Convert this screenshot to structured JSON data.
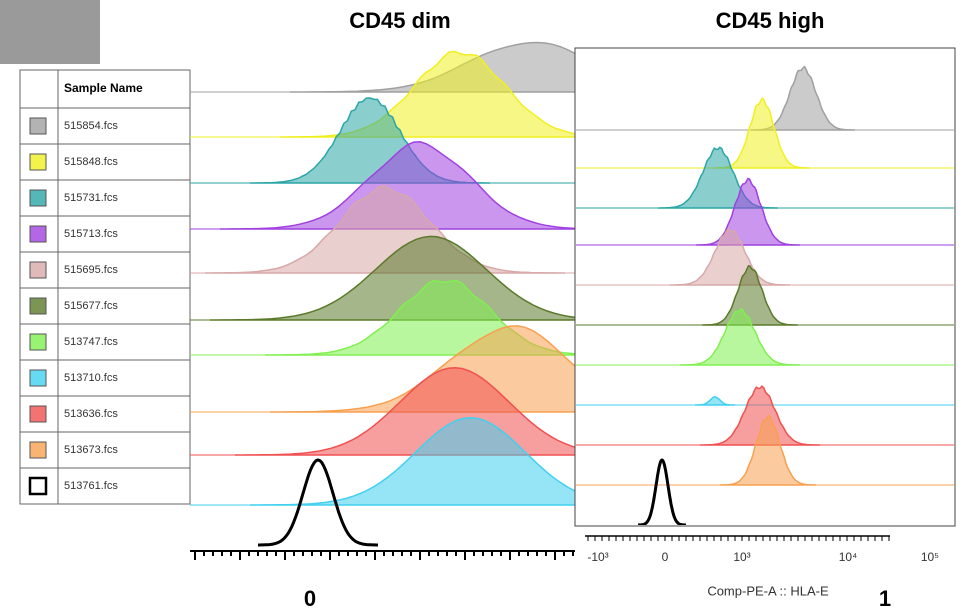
{
  "header": {
    "left_title": "CD45 dim",
    "right_title": "CD45 high"
  },
  "legend": {
    "header": "Sample Name",
    "samples": [
      {
        "name": "515854.fcs",
        "color": "#a0a0a0"
      },
      {
        "name": "515848.fcs",
        "color": "#f0f020"
      },
      {
        "name": "515731.fcs",
        "color": "#2aa6a6"
      },
      {
        "name": "515713.fcs",
        "color": "#a040e0"
      },
      {
        "name": "515695.fcs",
        "color": "#d8a8a8"
      },
      {
        "name": "515677.fcs",
        "color": "#5a7a2a"
      },
      {
        "name": "513747.fcs",
        "color": "#80f050"
      },
      {
        "name": "513710.fcs",
        "color": "#40d0f0"
      },
      {
        "name": "513636.fcs",
        "color": "#f05050"
      },
      {
        "name": "513673.fcs",
        "color": "#f8a050"
      },
      {
        "name": "513761.fcs",
        "color": "#000000"
      }
    ]
  },
  "left_axis": {
    "tick_labels": [
      "0",
      "1"
    ]
  },
  "right_axis": {
    "label": "Comp-PE-A :: HLA-E",
    "tick_labels": [
      "-10³",
      "0",
      "10³",
      "10⁴",
      "10⁵"
    ]
  }
}
